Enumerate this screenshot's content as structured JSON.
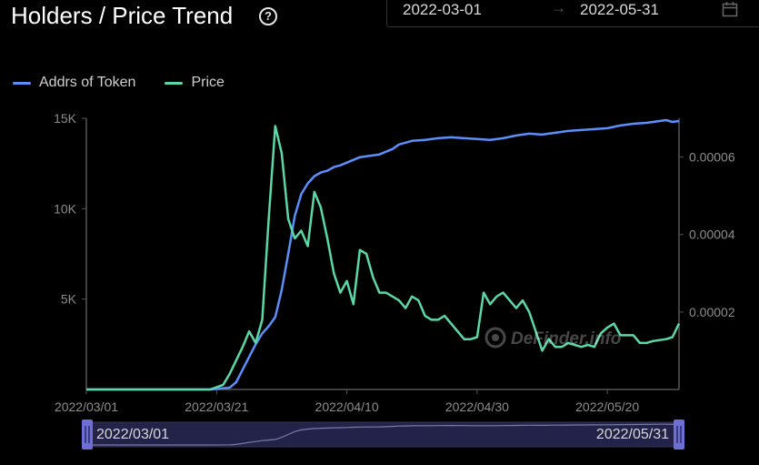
{
  "header": {
    "title": "Holders / Price Trend",
    "help_icon": "question-circle-icon",
    "date_start": "2022-03-01",
    "date_separator": "→",
    "date_end": "2022-05-31",
    "calendar_icon": "calendar-icon"
  },
  "watermark": "DeFinder.info",
  "zoom": {
    "start_label": "2022/03/01",
    "end_label": "2022/05/31",
    "handle_color": "#6e6ed8"
  },
  "colors": {
    "addrs": "#5b8ff9",
    "price": "#5ad8a6",
    "axis": "#555555",
    "background": "#000000"
  },
  "chart_data": {
    "type": "line",
    "title": "Holders / Price Trend",
    "x_axis": {
      "range": [
        "2022-03-01",
        "2022-05-31"
      ],
      "tick_labels": [
        "2022/03/01",
        "2022/03/21",
        "2022/04/10",
        "2022/04/30",
        "2022/05/20"
      ]
    },
    "y_left": {
      "range": [
        0,
        15000
      ],
      "tick_labels": [
        "5K",
        "10K",
        "15K"
      ],
      "ticks": [
        5000,
        10000,
        15000
      ]
    },
    "y_right": {
      "range": [
        0,
        7e-05
      ],
      "tick_labels": [
        "0.00002",
        "0.00004",
        "0.00006"
      ],
      "ticks": [
        2e-05,
        4e-05,
        6e-05
      ]
    },
    "legend": {
      "position": "top-left"
    },
    "series": [
      {
        "name": "Addrs of Token",
        "axis": "left",
        "points": [
          [
            "2022-03-01",
            0
          ],
          [
            "2022-03-10",
            0
          ],
          [
            "2022-03-20",
            0
          ],
          [
            "2022-03-23",
            100
          ],
          [
            "2022-03-24",
            400
          ],
          [
            "2022-03-25",
            1100
          ],
          [
            "2022-03-26",
            1800
          ],
          [
            "2022-03-27",
            2500
          ],
          [
            "2022-03-28",
            3100
          ],
          [
            "2022-03-29",
            3500
          ],
          [
            "2022-03-30",
            4000
          ],
          [
            "2022-03-31",
            5500
          ],
          [
            "2022-04-01",
            7500
          ],
          [
            "2022-04-02",
            9600
          ],
          [
            "2022-04-03",
            10800
          ],
          [
            "2022-04-04",
            11400
          ],
          [
            "2022-04-05",
            11800
          ],
          [
            "2022-04-06",
            12000
          ],
          [
            "2022-04-07",
            12100
          ],
          [
            "2022-04-08",
            12300
          ],
          [
            "2022-04-09",
            12400
          ],
          [
            "2022-04-10",
            12550
          ],
          [
            "2022-04-11",
            12700
          ],
          [
            "2022-04-12",
            12850
          ],
          [
            "2022-04-13",
            12900
          ],
          [
            "2022-04-15",
            13000
          ],
          [
            "2022-04-17",
            13300
          ],
          [
            "2022-04-18",
            13550
          ],
          [
            "2022-04-19",
            13650
          ],
          [
            "2022-04-20",
            13750
          ],
          [
            "2022-04-22",
            13800
          ],
          [
            "2022-04-24",
            13900
          ],
          [
            "2022-04-26",
            13950
          ],
          [
            "2022-04-28",
            13900
          ],
          [
            "2022-04-30",
            13850
          ],
          [
            "2022-05-02",
            13800
          ],
          [
            "2022-05-04",
            13900
          ],
          [
            "2022-05-06",
            14050
          ],
          [
            "2022-05-08",
            14150
          ],
          [
            "2022-05-10",
            14100
          ],
          [
            "2022-05-12",
            14200
          ],
          [
            "2022-05-14",
            14300
          ],
          [
            "2022-05-16",
            14350
          ],
          [
            "2022-05-18",
            14400
          ],
          [
            "2022-05-20",
            14450
          ],
          [
            "2022-05-22",
            14600
          ],
          [
            "2022-05-24",
            14700
          ],
          [
            "2022-05-26",
            14750
          ],
          [
            "2022-05-28",
            14850
          ],
          [
            "2022-05-29",
            14900
          ],
          [
            "2022-05-30",
            14800
          ],
          [
            "2022-05-31",
            14850
          ]
        ]
      },
      {
        "name": "Price",
        "axis": "right",
        "points": [
          [
            "2022-03-01",
            0
          ],
          [
            "2022-03-10",
            0
          ],
          [
            "2022-03-20",
            0
          ],
          [
            "2022-03-22",
            1.2e-06
          ],
          [
            "2022-03-23",
            4e-06
          ],
          [
            "2022-03-24",
            7.5e-06
          ],
          [
            "2022-03-25",
            1.1e-05
          ],
          [
            "2022-03-26",
            1.5e-05
          ],
          [
            "2022-03-27",
            1.2e-05
          ],
          [
            "2022-03-28",
            1.8e-05
          ],
          [
            "2022-03-29",
            4.4e-05
          ],
          [
            "2022-03-30",
            6.8e-05
          ],
          [
            "2022-03-31",
            6.1e-05
          ],
          [
            "2022-04-01",
            4.4e-05
          ],
          [
            "2022-04-02",
            3.9e-05
          ],
          [
            "2022-04-03",
            4.1e-05
          ],
          [
            "2022-04-04",
            3.7e-05
          ],
          [
            "2022-04-05",
            5.1e-05
          ],
          [
            "2022-04-06",
            4.7e-05
          ],
          [
            "2022-04-07",
            3.9e-05
          ],
          [
            "2022-04-08",
            3e-05
          ],
          [
            "2022-04-09",
            2.5e-05
          ],
          [
            "2022-04-10",
            2.8e-05
          ],
          [
            "2022-04-11",
            2.2e-05
          ],
          [
            "2022-04-12",
            3.6e-05
          ],
          [
            "2022-04-13",
            3.5e-05
          ],
          [
            "2022-04-14",
            2.9e-05
          ],
          [
            "2022-04-15",
            2.5e-05
          ],
          [
            "2022-04-16",
            2.5e-05
          ],
          [
            "2022-04-18",
            2.3e-05
          ],
          [
            "2022-04-19",
            2.1e-05
          ],
          [
            "2022-04-20",
            2.4e-05
          ],
          [
            "2022-04-21",
            2.3e-05
          ],
          [
            "2022-04-22",
            1.9e-05
          ],
          [
            "2022-04-23",
            1.8e-05
          ],
          [
            "2022-04-24",
            1.8e-05
          ],
          [
            "2022-04-25",
            1.9e-05
          ],
          [
            "2022-04-26",
            1.7e-05
          ],
          [
            "2022-04-27",
            1.5e-05
          ],
          [
            "2022-04-28",
            1.3e-05
          ],
          [
            "2022-04-29",
            1.3e-05
          ],
          [
            "2022-04-30",
            1.35e-05
          ],
          [
            "2022-05-01",
            2.5e-05
          ],
          [
            "2022-05-02",
            2.2e-05
          ],
          [
            "2022-05-03",
            2.4e-05
          ],
          [
            "2022-05-04",
            2.5e-05
          ],
          [
            "2022-05-05",
            2.3e-05
          ],
          [
            "2022-05-06",
            2.1e-05
          ],
          [
            "2022-05-07",
            2.3e-05
          ],
          [
            "2022-05-08",
            2e-05
          ],
          [
            "2022-05-09",
            1.5e-05
          ],
          [
            "2022-05-10",
            1e-05
          ],
          [
            "2022-05-11",
            1.3e-05
          ],
          [
            "2022-05-12",
            1.1e-05
          ],
          [
            "2022-05-13",
            1.1e-05
          ],
          [
            "2022-05-14",
            1.2e-05
          ],
          [
            "2022-05-16",
            1.1e-05
          ],
          [
            "2022-05-17",
            1.15e-05
          ],
          [
            "2022-05-18",
            1.1e-05
          ],
          [
            "2022-05-19",
            1.45e-05
          ],
          [
            "2022-05-20",
            1.6e-05
          ],
          [
            "2022-05-21",
            1.7e-05
          ],
          [
            "2022-05-22",
            1.4e-05
          ],
          [
            "2022-05-24",
            1.4e-05
          ],
          [
            "2022-05-25",
            1.2e-05
          ],
          [
            "2022-05-26",
            1.2e-05
          ],
          [
            "2022-05-27",
            1.25e-05
          ],
          [
            "2022-05-29",
            1.3e-05
          ],
          [
            "2022-05-30",
            1.35e-05
          ],
          [
            "2022-05-31",
            1.7e-05
          ]
        ]
      }
    ]
  }
}
